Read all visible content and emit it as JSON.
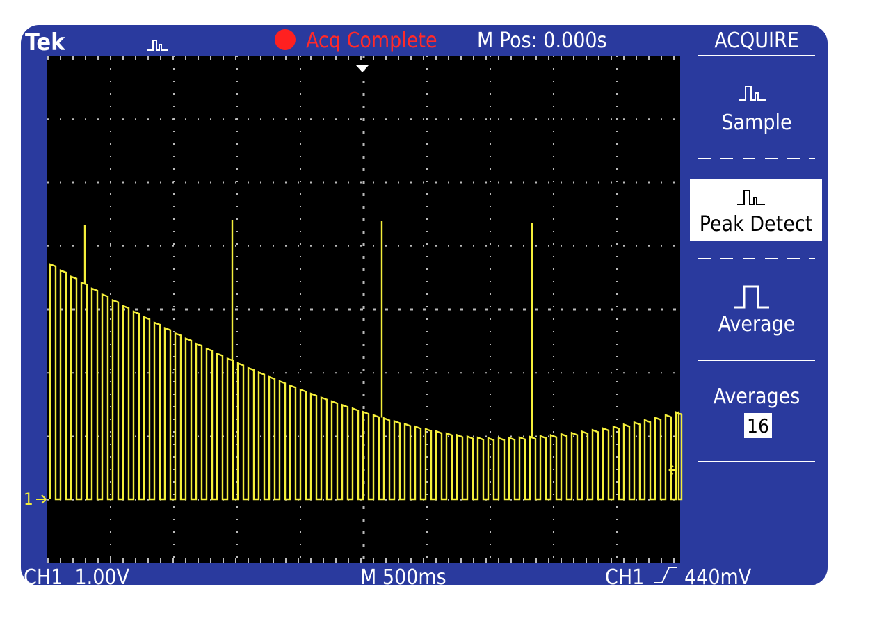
{
  "status_bar": {
    "brand": "Tek",
    "state": "Acq Complete",
    "position": "M Pos: 0.000s"
  },
  "menu": {
    "title": "ACQUIRE",
    "items": [
      "Sample",
      "Peak Detect",
      "Average"
    ],
    "averages_label": "Averages",
    "averages_value": "16"
  },
  "screen": {
    "channel_marker": "1"
  },
  "footer": {
    "channel_scale": "CH1  1.00V",
    "timebase": "M 500ms",
    "trigger_source": "CH1",
    "trigger_level": "440mV"
  }
}
